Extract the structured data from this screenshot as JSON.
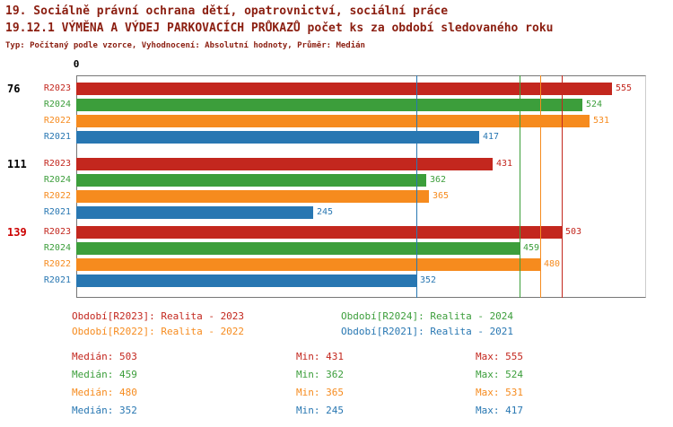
{
  "header": {
    "title1": "19. Sociálně právní ochrana dětí, opatrovnictví, sociální práce",
    "title2": "19.12.1 VÝMĚNA A VÝDEJ PARKOVACÍCH PRŮKAZŮ počet ks za období sledovaného roku",
    "subtitle": "Typ: Počítaný podle vzorce, Vyhodnocení: Absolutní hodnoty, Průměr: Medián"
  },
  "chart_data": {
    "type": "bar",
    "orientation": "horizontal",
    "origin_tick": "0",
    "xmax": 590,
    "grid": false,
    "groups": [
      {
        "label": "76",
        "label_color": "#000000"
      },
      {
        "label": "111",
        "label_color": "#000000"
      },
      {
        "label": "139",
        "label_color": "#CC0000"
      }
    ],
    "series": [
      {
        "name": "R2023",
        "color": "#C3271E",
        "values": [
          555,
          431,
          503
        ],
        "median": 503
      },
      {
        "name": "R2024",
        "color": "#3C9E3B",
        "values": [
          524,
          362,
          459
        ],
        "median": 459
      },
      {
        "name": "R2022",
        "color": "#F68B1E",
        "values": [
          531,
          365,
          480
        ],
        "median": 480
      },
      {
        "name": "R2021",
        "color": "#2877B2",
        "values": [
          417,
          245,
          352
        ],
        "median": 352
      }
    ],
    "median_lines_shown": true
  },
  "legend": {
    "items": [
      {
        "text": "Období[R2023]: Realita - 2023",
        "color": "#C3271E"
      },
      {
        "text": "Období[R2024]: Realita - 2024",
        "color": "#3C9E3B"
      },
      {
        "text": "Období[R2022]: Realita - 2022",
        "color": "#F68B1E"
      },
      {
        "text": "Období[R2021]: Realita - 2021",
        "color": "#2877B2"
      }
    ]
  },
  "stats": {
    "rows": [
      {
        "median": "Medián: 503",
        "min": "Min: 431",
        "max": "Max: 555",
        "color": "#C3271E"
      },
      {
        "median": "Medián: 459",
        "min": "Min: 362",
        "max": "Max: 524",
        "color": "#3C9E3B"
      },
      {
        "median": "Medián: 480",
        "min": "Min: 365",
        "max": "Max: 531",
        "color": "#F68B1E"
      },
      {
        "median": "Medián: 352",
        "min": "Min: 245",
        "max": "Max: 417",
        "color": "#2877B2"
      }
    ]
  }
}
